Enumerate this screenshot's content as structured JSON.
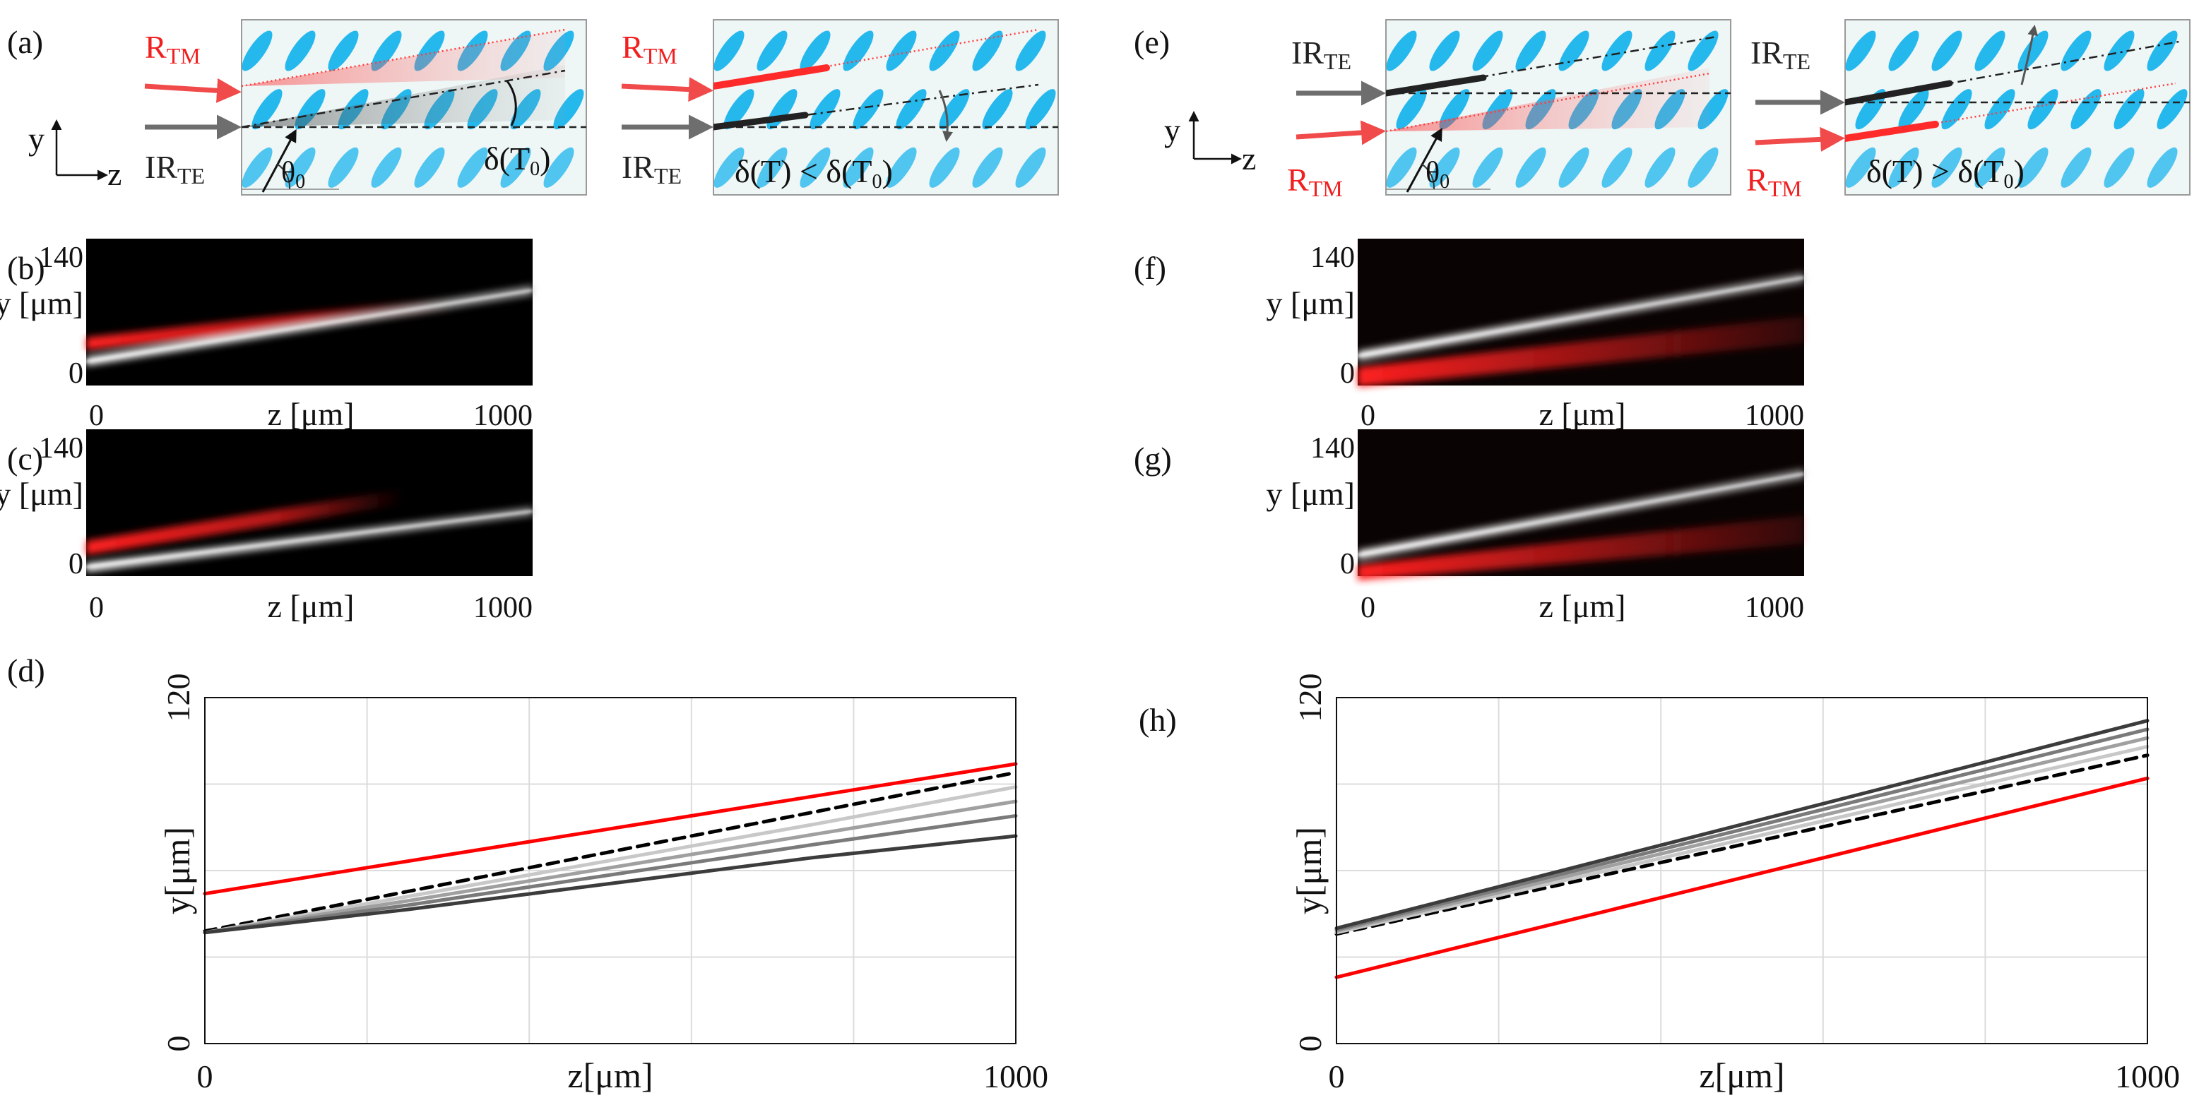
{
  "panels": {
    "a": {
      "letter": "(a)",
      "diagram1": {
        "r_main": "R",
        "r_sub": "TM",
        "ir_main": "IR",
        "ir_sub": "TE",
        "theta_main": "θ",
        "theta_sub": "0",
        "delta_text": "δ(T",
        "delta_sub": "0",
        "delta_close": ")"
      },
      "diagram2": {
        "r_main": "R",
        "r_sub": "TM",
        "ir_main": "IR",
        "ir_sub": "TE",
        "delta_text": "δ(T) < δ(T",
        "delta_sub": "0",
        "delta_close": ")"
      },
      "axis_y": "y",
      "axis_z": "z"
    },
    "e": {
      "letter": "(e)",
      "diagram1": {
        "r_main": "R",
        "r_sub": "TM",
        "ir_main": "IR",
        "ir_sub": "TE",
        "theta_main": "θ",
        "theta_sub": "0"
      },
      "diagram2": {
        "r_main": "R",
        "r_sub": "TM",
        "ir_main": "IR",
        "ir_sub": "TE",
        "delta_text": "δ(T) > δ(T",
        "delta_sub": "0",
        "delta_close": ")"
      },
      "axis_y": "y",
      "axis_z": "z"
    },
    "images": {
      "b": {
        "letter": "(b)",
        "ytick_top": "140",
        "ytick_bottom": "0",
        "ylabel": "y [μm]",
        "xtick_left": "0",
        "xtick_right": "1000",
        "xlabel": "z [μm]"
      },
      "c": {
        "letter": "(c)",
        "ytick_top": "140",
        "ytick_bottom": "0",
        "ylabel": "y [μm]",
        "xtick_left": "0",
        "xtick_right": "1000",
        "xlabel": "z [μm]"
      },
      "f": {
        "letter": "(f)",
        "ytick_top": "140",
        "ytick_bottom": "0",
        "ylabel": "y [μm]",
        "xtick_left": "0",
        "xtick_right": "1000",
        "xlabel": "z [μm]"
      },
      "g": {
        "letter": "(g)",
        "ytick_top": "140",
        "ytick_bottom": "0",
        "ylabel": "y [μm]",
        "xtick_left": "0",
        "xtick_right": "1000",
        "xlabel": "z [μm]"
      }
    },
    "d_letter": "(d)",
    "h_letter": "(h)"
  },
  "colors": {
    "red": "#ff1f1f",
    "lc_blue": "#19b4ec",
    "panel_bg": "#eef6f6",
    "ir_gray": "#6e6e6e"
  },
  "chart_data": [
    {
      "id": "d",
      "type": "line",
      "xlabel": "z[μm]",
      "ylabel": "y[μm]",
      "xlim": [
        0,
        1000
      ],
      "ylim": [
        0,
        120
      ],
      "xticks": [
        "0",
        "1000"
      ],
      "yticks": [
        "0",
        "120"
      ],
      "grid": true,
      "series": [
        {
          "color": "#ff0000",
          "dash": false,
          "x": [
            0,
            1000
          ],
          "y": [
            52,
            97
          ]
        },
        {
          "color": "#000000",
          "dash": true,
          "x": [
            0,
            1000
          ],
          "y": [
            39,
            94
          ]
        },
        {
          "color": "#c8c8c8",
          "dash": false,
          "x": [
            0,
            250,
            500,
            750,
            1000
          ],
          "y": [
            38.5,
            51,
            63.5,
            76,
            89
          ]
        },
        {
          "color": "#a0a0a0",
          "dash": false,
          "x": [
            0,
            250,
            500,
            750,
            1000
          ],
          "y": [
            38.5,
            49.5,
            61,
            72.5,
            84
          ]
        },
        {
          "color": "#7a7a7a",
          "dash": false,
          "x": [
            0,
            250,
            500,
            750,
            1000
          ],
          "y": [
            38.5,
            48,
            58.5,
            69,
            79
          ]
        },
        {
          "color": "#3c3c3c",
          "dash": false,
          "x": [
            0,
            250,
            500,
            750,
            1000
          ],
          "y": [
            38.5,
            46.5,
            55.5,
            64.5,
            72
          ]
        }
      ]
    },
    {
      "id": "h",
      "type": "line",
      "xlabel": "z[μm]",
      "ylabel": "y[μm]",
      "xlim": [
        0,
        1000
      ],
      "ylim": [
        0,
        120
      ],
      "xticks": [
        "0",
        "1000"
      ],
      "yticks": [
        "0",
        "120"
      ],
      "grid": true,
      "series": [
        {
          "color": "#ff0000",
          "dash": false,
          "x": [
            0,
            1000
          ],
          "y": [
            23,
            92
          ]
        },
        {
          "color": "#000000",
          "dash": true,
          "x": [
            0,
            1000
          ],
          "y": [
            38,
            100
          ]
        },
        {
          "color": "#c8c8c8",
          "dash": false,
          "x": [
            0,
            1000
          ],
          "y": [
            38.5,
            103
          ]
        },
        {
          "color": "#a0a0a0",
          "dash": false,
          "x": [
            0,
            1000
          ],
          "y": [
            39,
            106
          ]
        },
        {
          "color": "#7a7a7a",
          "dash": false,
          "x": [
            0,
            1000
          ],
          "y": [
            39.5,
            109
          ]
        },
        {
          "color": "#3c3c3c",
          "dash": false,
          "x": [
            0,
            1000
          ],
          "y": [
            40,
            112
          ]
        }
      ]
    }
  ]
}
